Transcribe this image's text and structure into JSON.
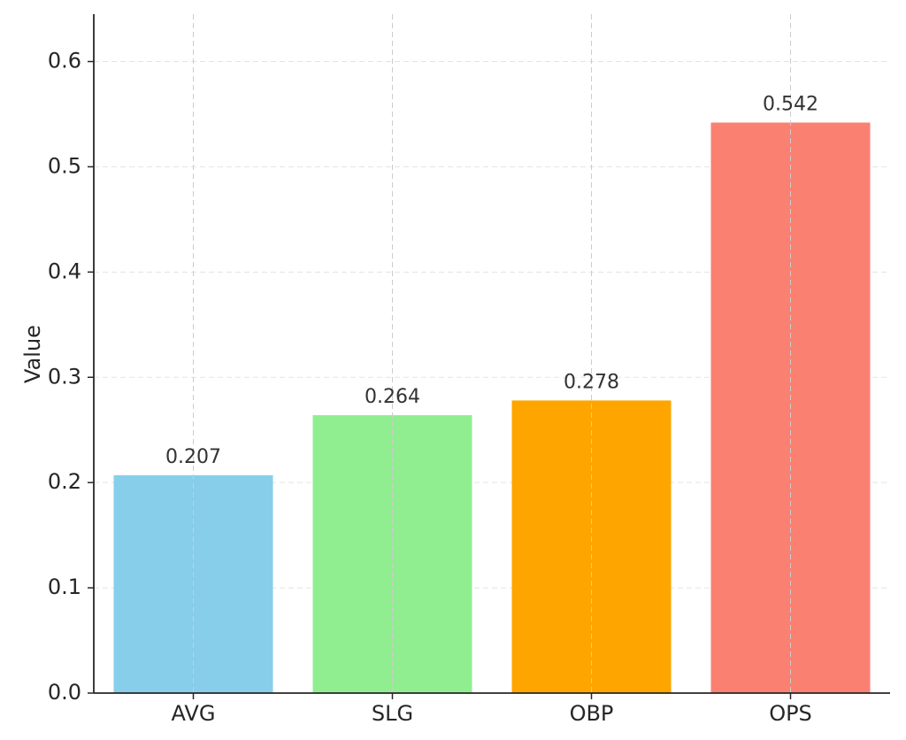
{
  "chart_data": {
    "type": "bar",
    "title": "",
    "xlabel": "",
    "ylabel": "Value",
    "categories": [
      "AVG",
      "SLG",
      "OBP",
      "OPS"
    ],
    "values": [
      0.207,
      0.264,
      0.278,
      0.542
    ],
    "value_labels": [
      "0.207",
      "0.264",
      "0.278",
      "0.542"
    ],
    "colors": [
      "#87ceeb",
      "#90ee90",
      "#ffa500",
      "#fa8072"
    ],
    "ylim": [
      0,
      0.645
    ],
    "yticks": [
      0.0,
      0.1,
      0.2,
      0.3,
      0.4,
      0.5,
      0.6
    ],
    "ytick_labels": [
      "0.0",
      "0.1",
      "0.2",
      "0.3",
      "0.4",
      "0.5",
      "0.6"
    ],
    "grid": true,
    "grid_style": "dashed",
    "legend": "none"
  }
}
